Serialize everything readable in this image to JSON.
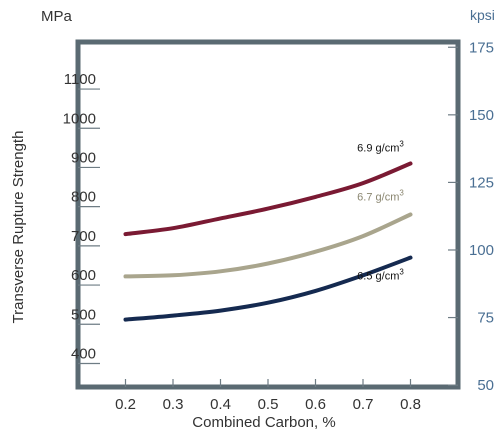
{
  "chart_data": {
    "type": "line",
    "title": "",
    "xlabel": "Combined Carbon, %",
    "ylabel": "Transverse Rupture Strength",
    "y_unit": "MPa",
    "y2_unit": "kpsi",
    "xlim": [
      0.1,
      0.9
    ],
    "ylim": [
      340,
      1220
    ],
    "x_ticks": [
      "0.2",
      "0.3",
      "0.4",
      "0.5",
      "0.6",
      "0.7",
      "0.8"
    ],
    "y_ticks": [
      "400",
      "500",
      "600",
      "700",
      "800",
      "900",
      "1000",
      "1100"
    ],
    "y2_ticks": [
      "50",
      "75",
      "100",
      "125",
      "150",
      "175"
    ],
    "x": [
      0.2,
      0.3,
      0.4,
      0.5,
      0.6,
      0.7,
      0.8
    ],
    "series": [
      {
        "name": "6.9 g/cm",
        "superscript": "3",
        "color": "#7a1a33",
        "values": [
          730,
          745,
          770,
          795,
          825,
          860,
          910
        ]
      },
      {
        "name": "6.7 g/cm",
        "superscript": "3",
        "color": "#a9a58d",
        "values": [
          622,
          625,
          635,
          655,
          685,
          725,
          780
        ]
      },
      {
        "name": "6.5 g/cm",
        "superscript": "3",
        "color": "#152a50",
        "values": [
          512,
          522,
          535,
          555,
          585,
          625,
          670
        ]
      }
    ],
    "grid": false,
    "legend": "inline-labels"
  }
}
